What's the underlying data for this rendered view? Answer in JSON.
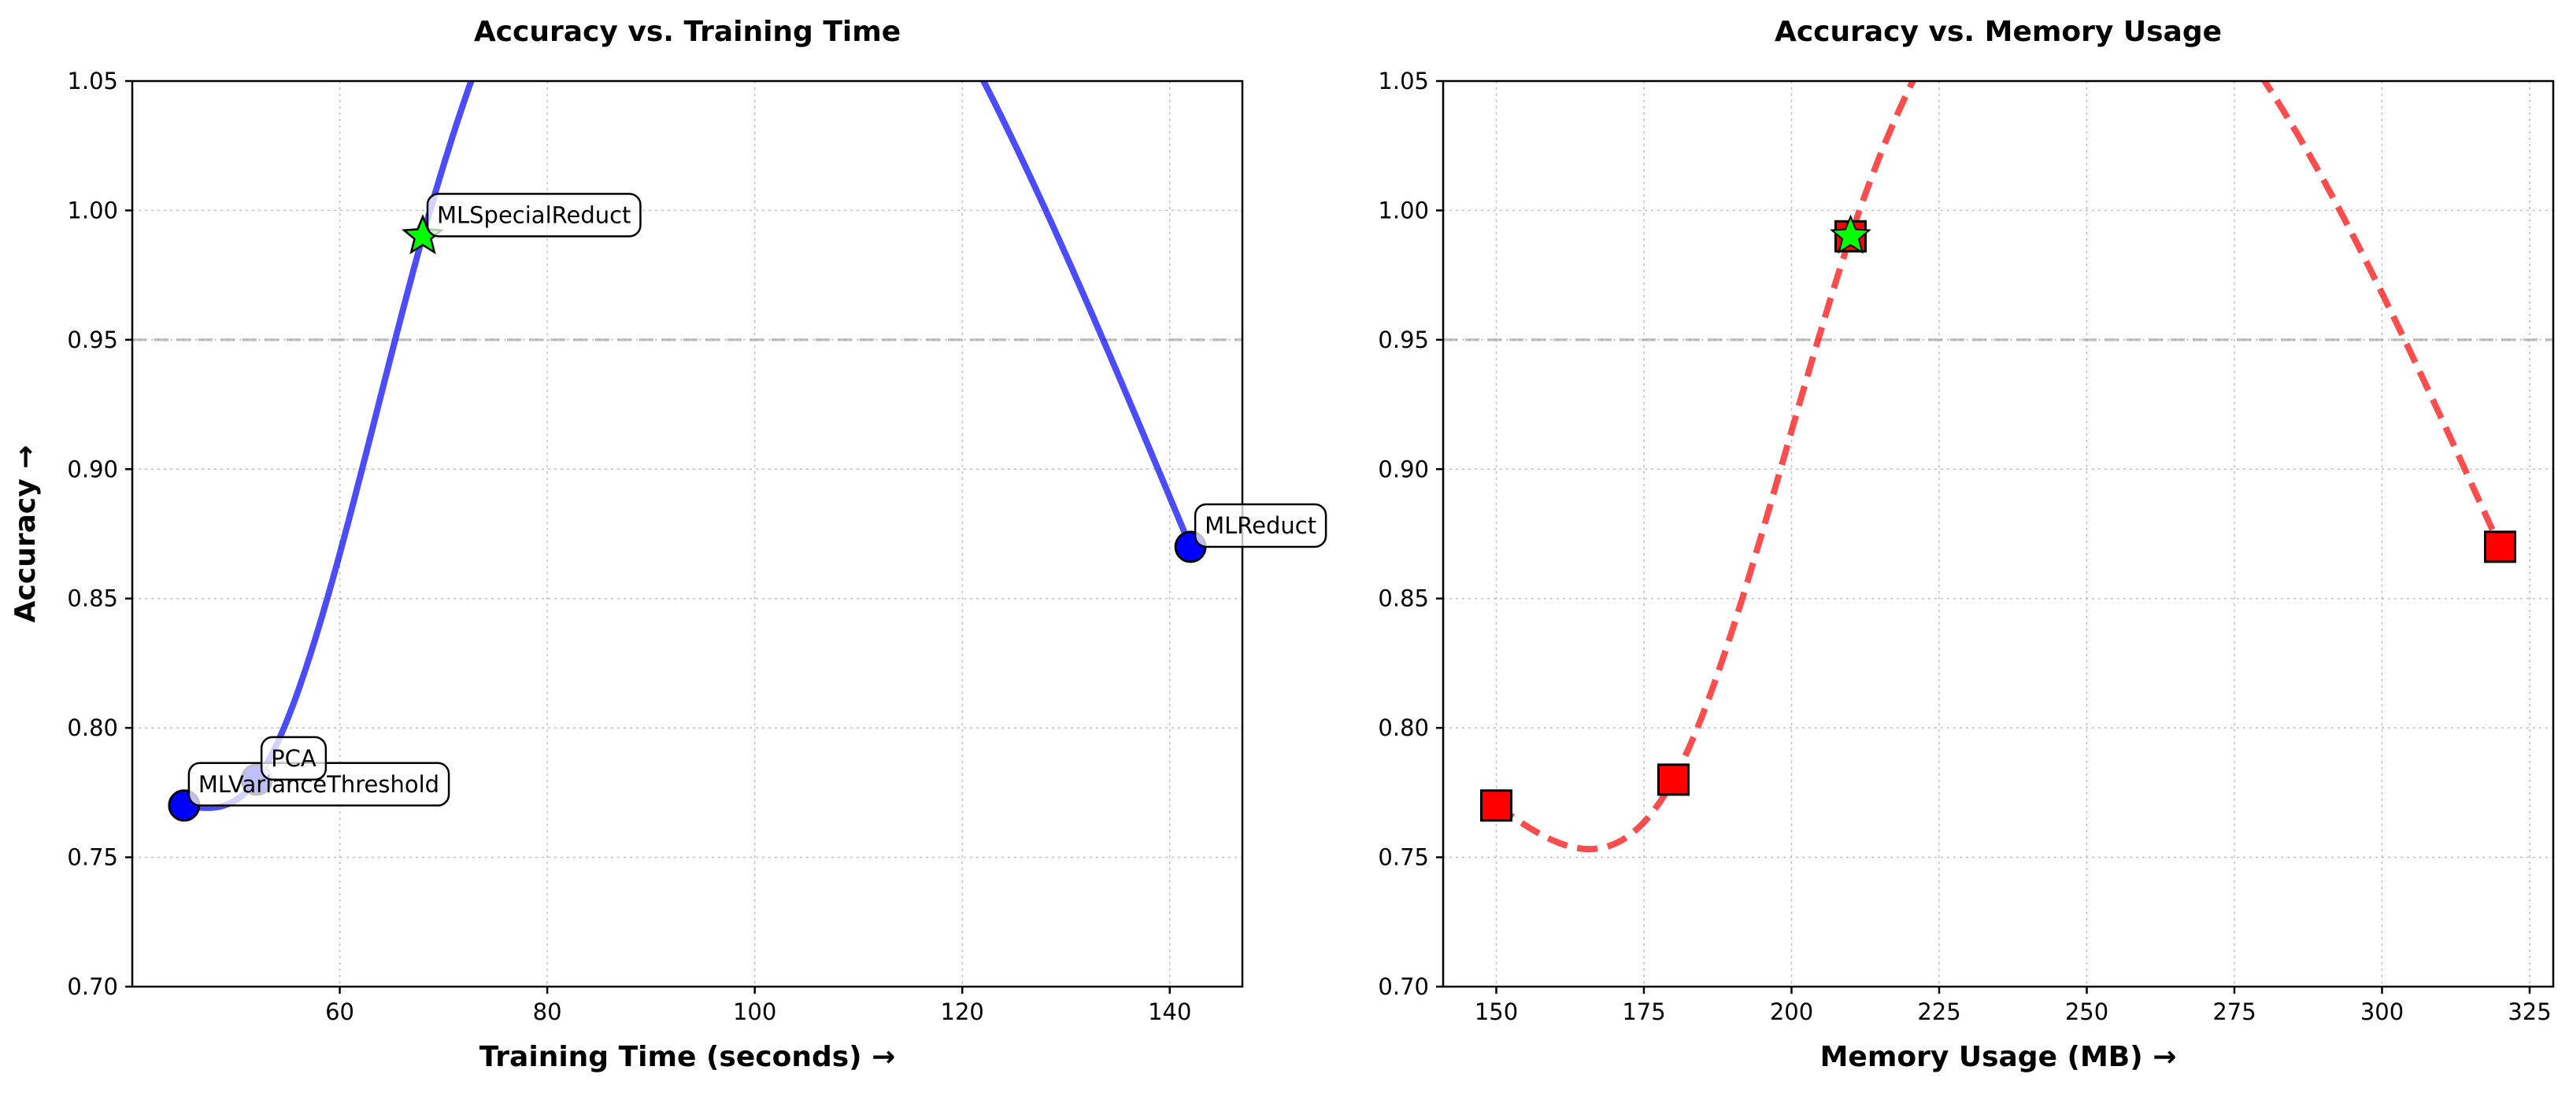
{
  "chart_data": [
    {
      "type": "line",
      "title": "Accuracy vs. Training Time",
      "xlabel": "Training Time (seconds) →",
      "ylabel": "Accuracy →",
      "xlim": [
        40,
        147
      ],
      "ylim": [
        0.7,
        1.05
      ],
      "xticks": [
        60,
        80,
        100,
        120,
        140
      ],
      "yticks": [
        0.7,
        0.75,
        0.8,
        0.85,
        0.9,
        0.95,
        1.0,
        1.05
      ],
      "grid": true,
      "reference_line": {
        "y": 0.95,
        "style": "dashed",
        "color": "#aaaaaa"
      },
      "curve": {
        "style": "solid",
        "color": "#0000ff"
      },
      "points": [
        {
          "label": "MLVarianceThreshold",
          "x": 45,
          "y": 0.77,
          "marker": "circle",
          "color": "#0000ff"
        },
        {
          "label": "PCA",
          "x": 52,
          "y": 0.78,
          "marker": "circle",
          "color": "#0000ff"
        },
        {
          "label": "MLSpecialReduct",
          "x": 68,
          "y": 0.99,
          "marker": "star",
          "color": "#00ff00"
        },
        {
          "label": "MLReduct",
          "x": 142,
          "y": 0.87,
          "marker": "circle",
          "color": "#0000ff"
        }
      ]
    },
    {
      "type": "line",
      "title": "Accuracy vs. Memory Usage",
      "xlabel": "Memory Usage (MB) →",
      "ylabel": "",
      "xlim": [
        141,
        329
      ],
      "ylim": [
        0.7,
        1.05
      ],
      "xticks": [
        150,
        175,
        200,
        225,
        250,
        275,
        300,
        325
      ],
      "yticks": [
        0.7,
        0.75,
        0.8,
        0.85,
        0.9,
        0.95,
        1.0,
        1.05
      ],
      "grid": true,
      "reference_line": {
        "y": 0.95,
        "style": "dashed",
        "color": "#aaaaaa"
      },
      "curve": {
        "style": "dashed",
        "color": "#ff0000"
      },
      "points": [
        {
          "x": 150,
          "y": 0.77,
          "marker": "square",
          "color": "#ff0000"
        },
        {
          "x": 180,
          "y": 0.78,
          "marker": "square",
          "color": "#ff0000"
        },
        {
          "x": 210,
          "y": 0.99,
          "marker": "square",
          "color": "#ff0000",
          "highlight": "star",
          "highlight_color": "#00ff00"
        },
        {
          "x": 320,
          "y": 0.87,
          "marker": "square",
          "color": "#ff0000"
        }
      ]
    }
  ]
}
